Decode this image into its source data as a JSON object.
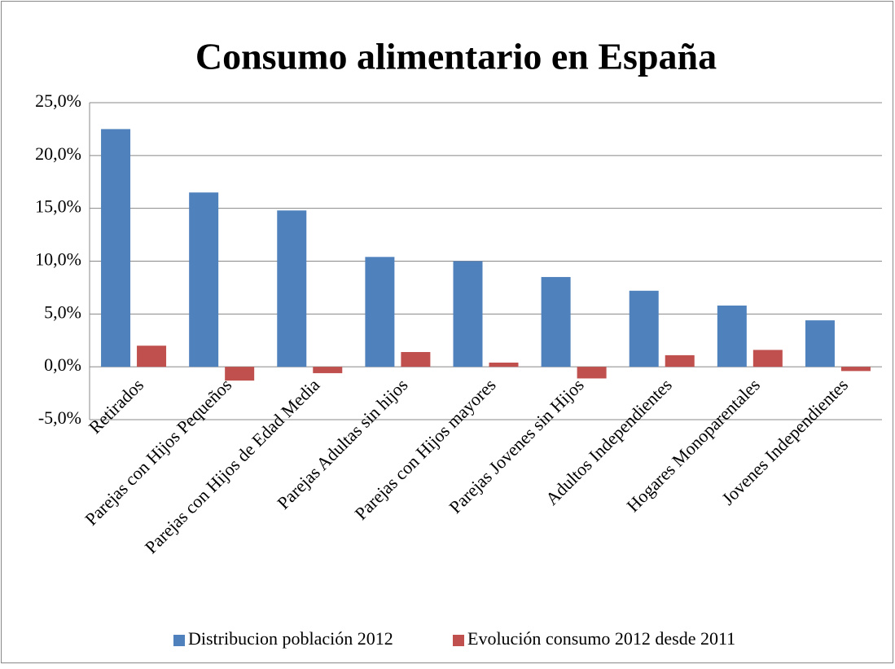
{
  "chart_data": {
    "type": "bar",
    "title": "Consumo alimentario en España",
    "categories": [
      "Retirados",
      "Parejas con Hijos Pequeños",
      "Parejas con Hijos de Edad Media",
      "Parejas Adultas sin hijos",
      "Parejas con Hijos mayores",
      "Parejas Jovenes sin Hijos",
      "Adultos Independientes",
      "Hogares Monoparentales",
      "Jovenes Independientes"
    ],
    "series": [
      {
        "name": "Distribucion población 2012",
        "color": "#4f81bd",
        "values": [
          22.5,
          16.5,
          14.8,
          10.4,
          10.0,
          8.5,
          7.2,
          5.8,
          4.4
        ]
      },
      {
        "name": "Evolución consumo 2012 desde 2011",
        "color": "#c0504d",
        "values": [
          2.0,
          -1.3,
          -0.6,
          1.4,
          0.4,
          -1.1,
          1.1,
          1.6,
          -0.4
        ]
      }
    ],
    "ylim": [
      -5,
      25
    ],
    "yticks": [
      {
        "value": -5,
        "label": "-5,0%"
      },
      {
        "value": 0,
        "label": "0,0%"
      },
      {
        "value": 5,
        "label": "5,0%"
      },
      {
        "value": 10,
        "label": "10,0%"
      },
      {
        "value": 15,
        "label": "15,0%"
      },
      {
        "value": 20,
        "label": "20,0%"
      },
      {
        "value": 25,
        "label": "25,0%"
      }
    ],
    "grid": true,
    "legend": "bottom"
  }
}
